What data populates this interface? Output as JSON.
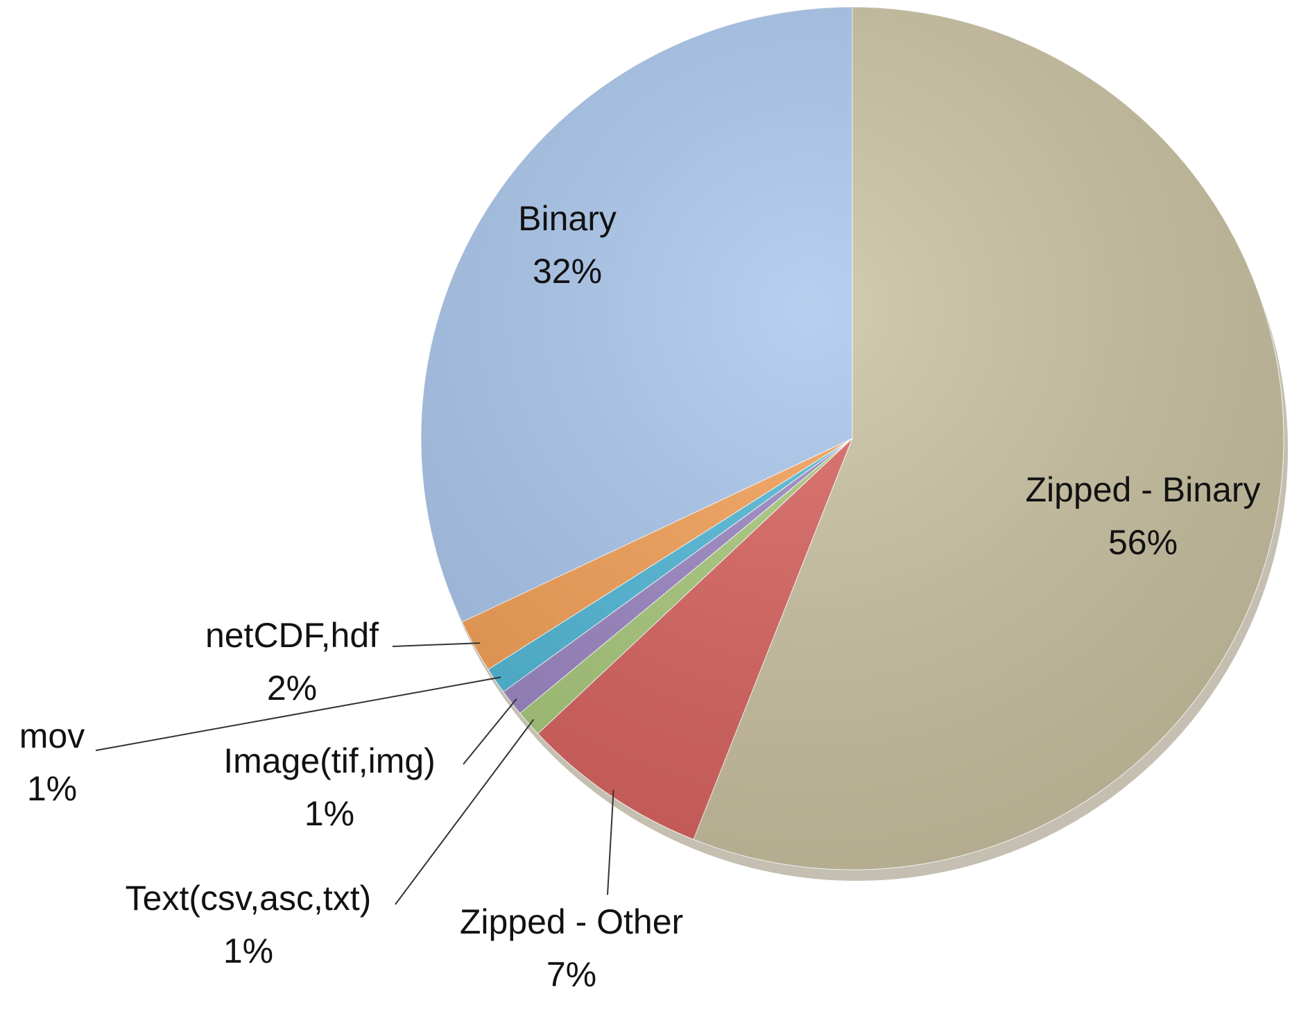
{
  "chart_data": {
    "type": "pie",
    "categories": [
      "Zipped - Binary",
      "Zipped - Other",
      "Text(csv,asc,txt)",
      "Image(tif,img)",
      "mov",
      "netCDF,hdf",
      "Binary"
    ],
    "values": [
      56,
      7,
      1,
      1,
      1,
      2,
      32
    ],
    "value_labels": [
      "56%",
      "7%",
      "1%",
      "1%",
      "1%",
      "2%",
      "32%"
    ],
    "colors": [
      "#c9c1a0",
      "#d9625e",
      "#a8c97a",
      "#9b86c4",
      "#4fb8d8",
      "#f5a055",
      "#a9c6ec"
    ]
  }
}
